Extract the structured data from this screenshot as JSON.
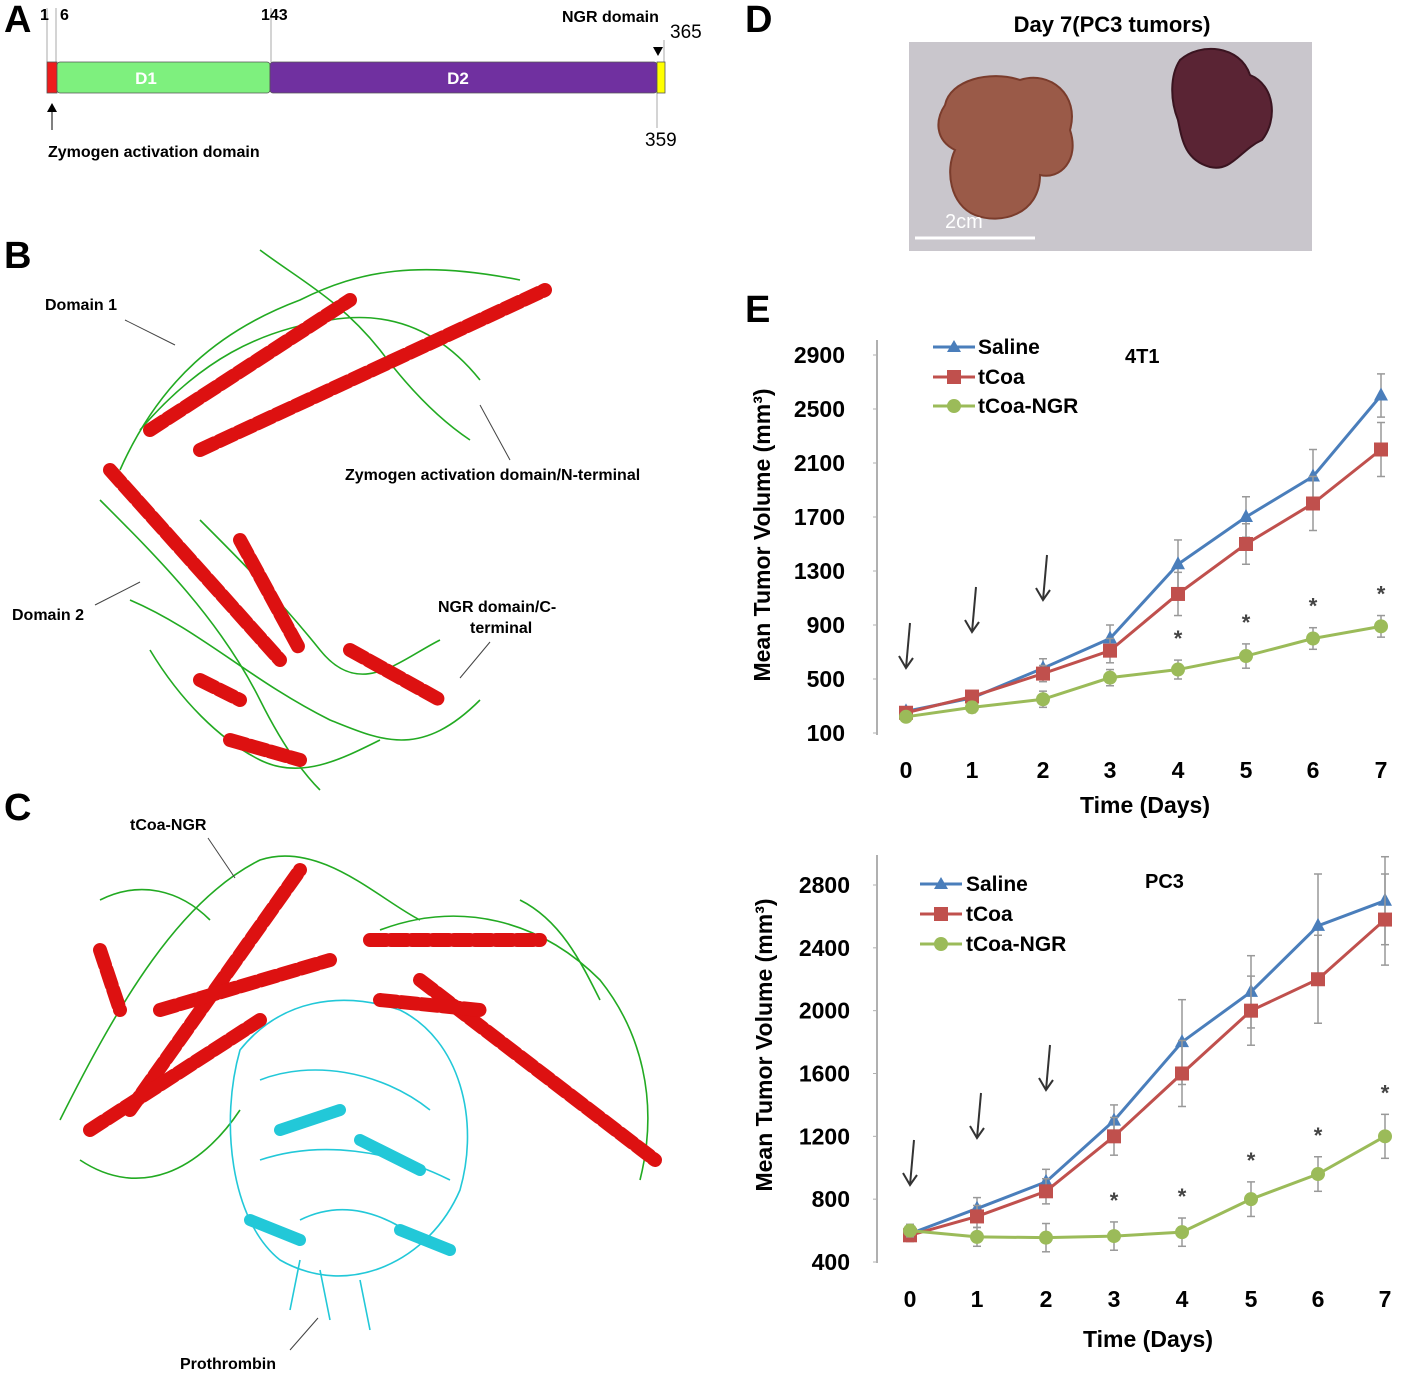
{
  "panels": {
    "A": {
      "letter": "A",
      "positions": {
        "p1": "1",
        "p6": "6",
        "p143": "143",
        "p365": "365",
        "p359": "359"
      },
      "domains": {
        "d1": "D1",
        "d2": "D2"
      },
      "labels": {
        "ngr": "NGR domain",
        "zymogen": "Zymogen activation domain"
      },
      "colors": {
        "zymogen": "#ee1c1c",
        "d1": "#7ef07e",
        "d2": "#7030a0",
        "ngr": "#ffff00"
      }
    },
    "B": {
      "letter": "B",
      "labels": {
        "domain1": "Domain 1",
        "zymogen": "Zymogen  activation domain/N-terminal",
        "domain2": "Domain 2",
        "ngr_line1": "NGR domain/C-",
        "ngr_line2": "terminal"
      }
    },
    "C": {
      "letter": "C",
      "labels": {
        "tcoa_ngr": "tCoa-NGR",
        "prothrombin": "Prothrombin"
      }
    },
    "D": {
      "letter": "D",
      "title": "Day 7(PC3 tumors)",
      "scale": "2cm"
    },
    "E": {
      "letter": "E"
    }
  },
  "colors": {
    "saline": "#4a7ebb",
    "tcoa": "#c0504d",
    "tcoa_ngr": "#9bbb59",
    "helix": "#dd1111",
    "sidechain": "#22aa22",
    "prothrombin": "#22c8d8"
  },
  "chart_data": [
    {
      "type": "line",
      "title": "4T1",
      "xlabel": "Time (Days)",
      "ylabel": "Mean Tumor Volume (mm³)",
      "x": [
        0,
        1,
        2,
        3,
        4,
        5,
        6,
        7
      ],
      "xticks": [
        "0",
        "1",
        "2",
        "3",
        "4",
        "5",
        "6",
        "7"
      ],
      "yticks": [
        100,
        500,
        900,
        1300,
        1700,
        2100,
        2500,
        2900
      ],
      "ylim": [
        100,
        2900
      ],
      "series": [
        {
          "name": "Saline",
          "key": "saline",
          "marker": "triangle",
          "values": [
            260,
            360,
            580,
            800,
            1350,
            1700,
            2000,
            2600
          ],
          "errors": [
            30,
            40,
            70,
            100,
            180,
            150,
            200,
            160
          ]
        },
        {
          "name": "tCoa",
          "key": "tcoa",
          "marker": "square",
          "values": [
            250,
            370,
            540,
            710,
            1130,
            1500,
            1800,
            2200
          ],
          "errors": [
            30,
            40,
            60,
            90,
            160,
            150,
            200,
            200
          ]
        },
        {
          "name": "tCoa-NGR",
          "key": "tcoa_ngr",
          "marker": "circle",
          "values": [
            220,
            290,
            350,
            510,
            570,
            670,
            800,
            890
          ],
          "errors": [
            30,
            40,
            60,
            60,
            70,
            90,
            80,
            80
          ]
        }
      ],
      "treatment_days": [
        0,
        1,
        2
      ],
      "significance_days": [
        4,
        5,
        6,
        7
      ],
      "significance_mark": "*"
    },
    {
      "type": "line",
      "title": "PC3",
      "xlabel": "Time (Days)",
      "ylabel": "Mean Tumor Volume (mm³)",
      "x": [
        0,
        1,
        2,
        3,
        4,
        5,
        6,
        7
      ],
      "xticks": [
        "0",
        "1",
        "2",
        "3",
        "4",
        "5",
        "6",
        "7"
      ],
      "yticks": [
        400,
        800,
        1200,
        1600,
        2000,
        2400,
        2800
      ],
      "ylim": [
        400,
        2950
      ],
      "series": [
        {
          "name": "Saline",
          "key": "saline",
          "marker": "triangle",
          "values": [
            580,
            740,
            910,
            1300,
            1800,
            2120,
            2540,
            2700
          ],
          "errors": [
            40,
            70,
            80,
            100,
            270,
            230,
            330,
            280
          ]
        },
        {
          "name": "tCoa",
          "key": "tcoa",
          "marker": "square",
          "values": [
            570,
            690,
            850,
            1200,
            1600,
            2000,
            2200,
            2580
          ],
          "errors": [
            40,
            70,
            80,
            120,
            210,
            220,
            280,
            290
          ]
        },
        {
          "name": "tCoa-NGR",
          "key": "tcoa_ngr",
          "marker": "circle",
          "values": [
            600,
            560,
            555,
            565,
            590,
            800,
            960,
            1200
          ],
          "errors": [
            40,
            60,
            90,
            90,
            90,
            110,
            110,
            140
          ]
        }
      ],
      "treatment_days": [
        0,
        1,
        2
      ],
      "significance_days": [
        3,
        4,
        5,
        6,
        7
      ],
      "significance_mark": "*"
    }
  ]
}
